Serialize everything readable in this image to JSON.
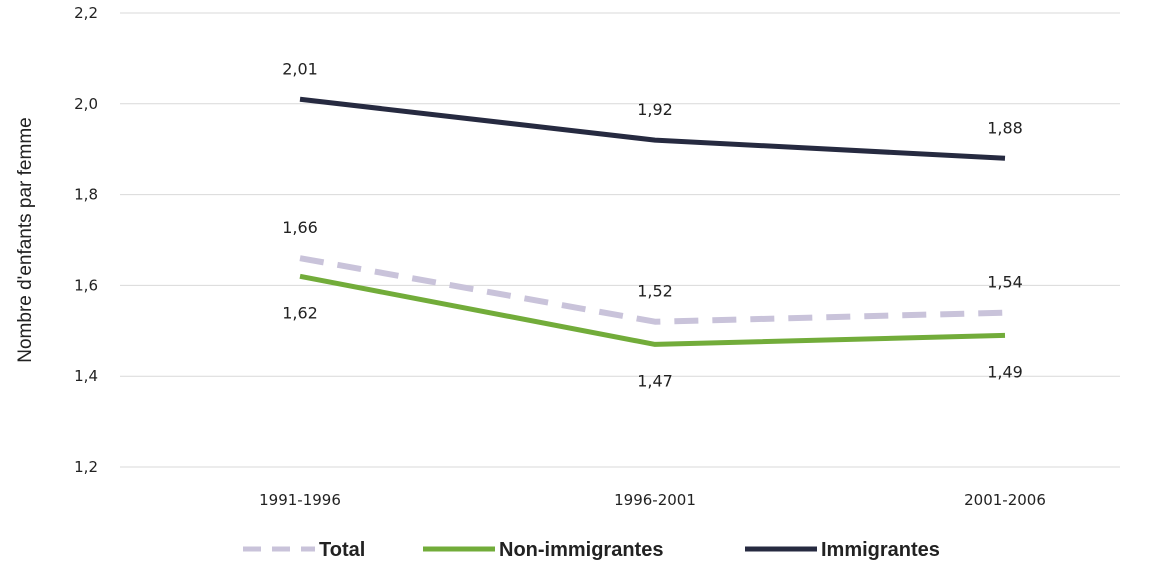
{
  "chart_data": {
    "type": "line",
    "categories": [
      "1991-1996",
      "1996-2001",
      "2001-2006"
    ],
    "ylabel": "Nombre d'enfants par femme",
    "xlabel": "",
    "ylim": [
      1.2,
      2.2
    ],
    "yticks": [
      1.2,
      1.4,
      1.6,
      1.8,
      2.0,
      2.2
    ],
    "ytick_labels": [
      "1,2",
      "1,4",
      "1,6",
      "1,8",
      "2,0",
      "2,2"
    ],
    "grid": true,
    "legend_position": "bottom",
    "series": [
      {
        "name": "Total",
        "values": [
          1.66,
          1.52,
          1.54
        ],
        "labels": [
          "1,66",
          "1,52",
          "1,54"
        ],
        "color": "#c9c3da",
        "dash": true,
        "label_side": "above"
      },
      {
        "name": "Non-immigrantes",
        "values": [
          1.62,
          1.47,
          1.49
        ],
        "labels": [
          "1,62",
          "1,47",
          "1,49"
        ],
        "color": "#72ac3a",
        "dash": false,
        "label_side": "below"
      },
      {
        "name": "Immigrantes",
        "values": [
          2.01,
          1.92,
          1.88
        ],
        "labels": [
          "2,01",
          "1,92",
          "1,88"
        ],
        "color": "#262a40",
        "dash": false,
        "label_side": "above"
      }
    ]
  }
}
